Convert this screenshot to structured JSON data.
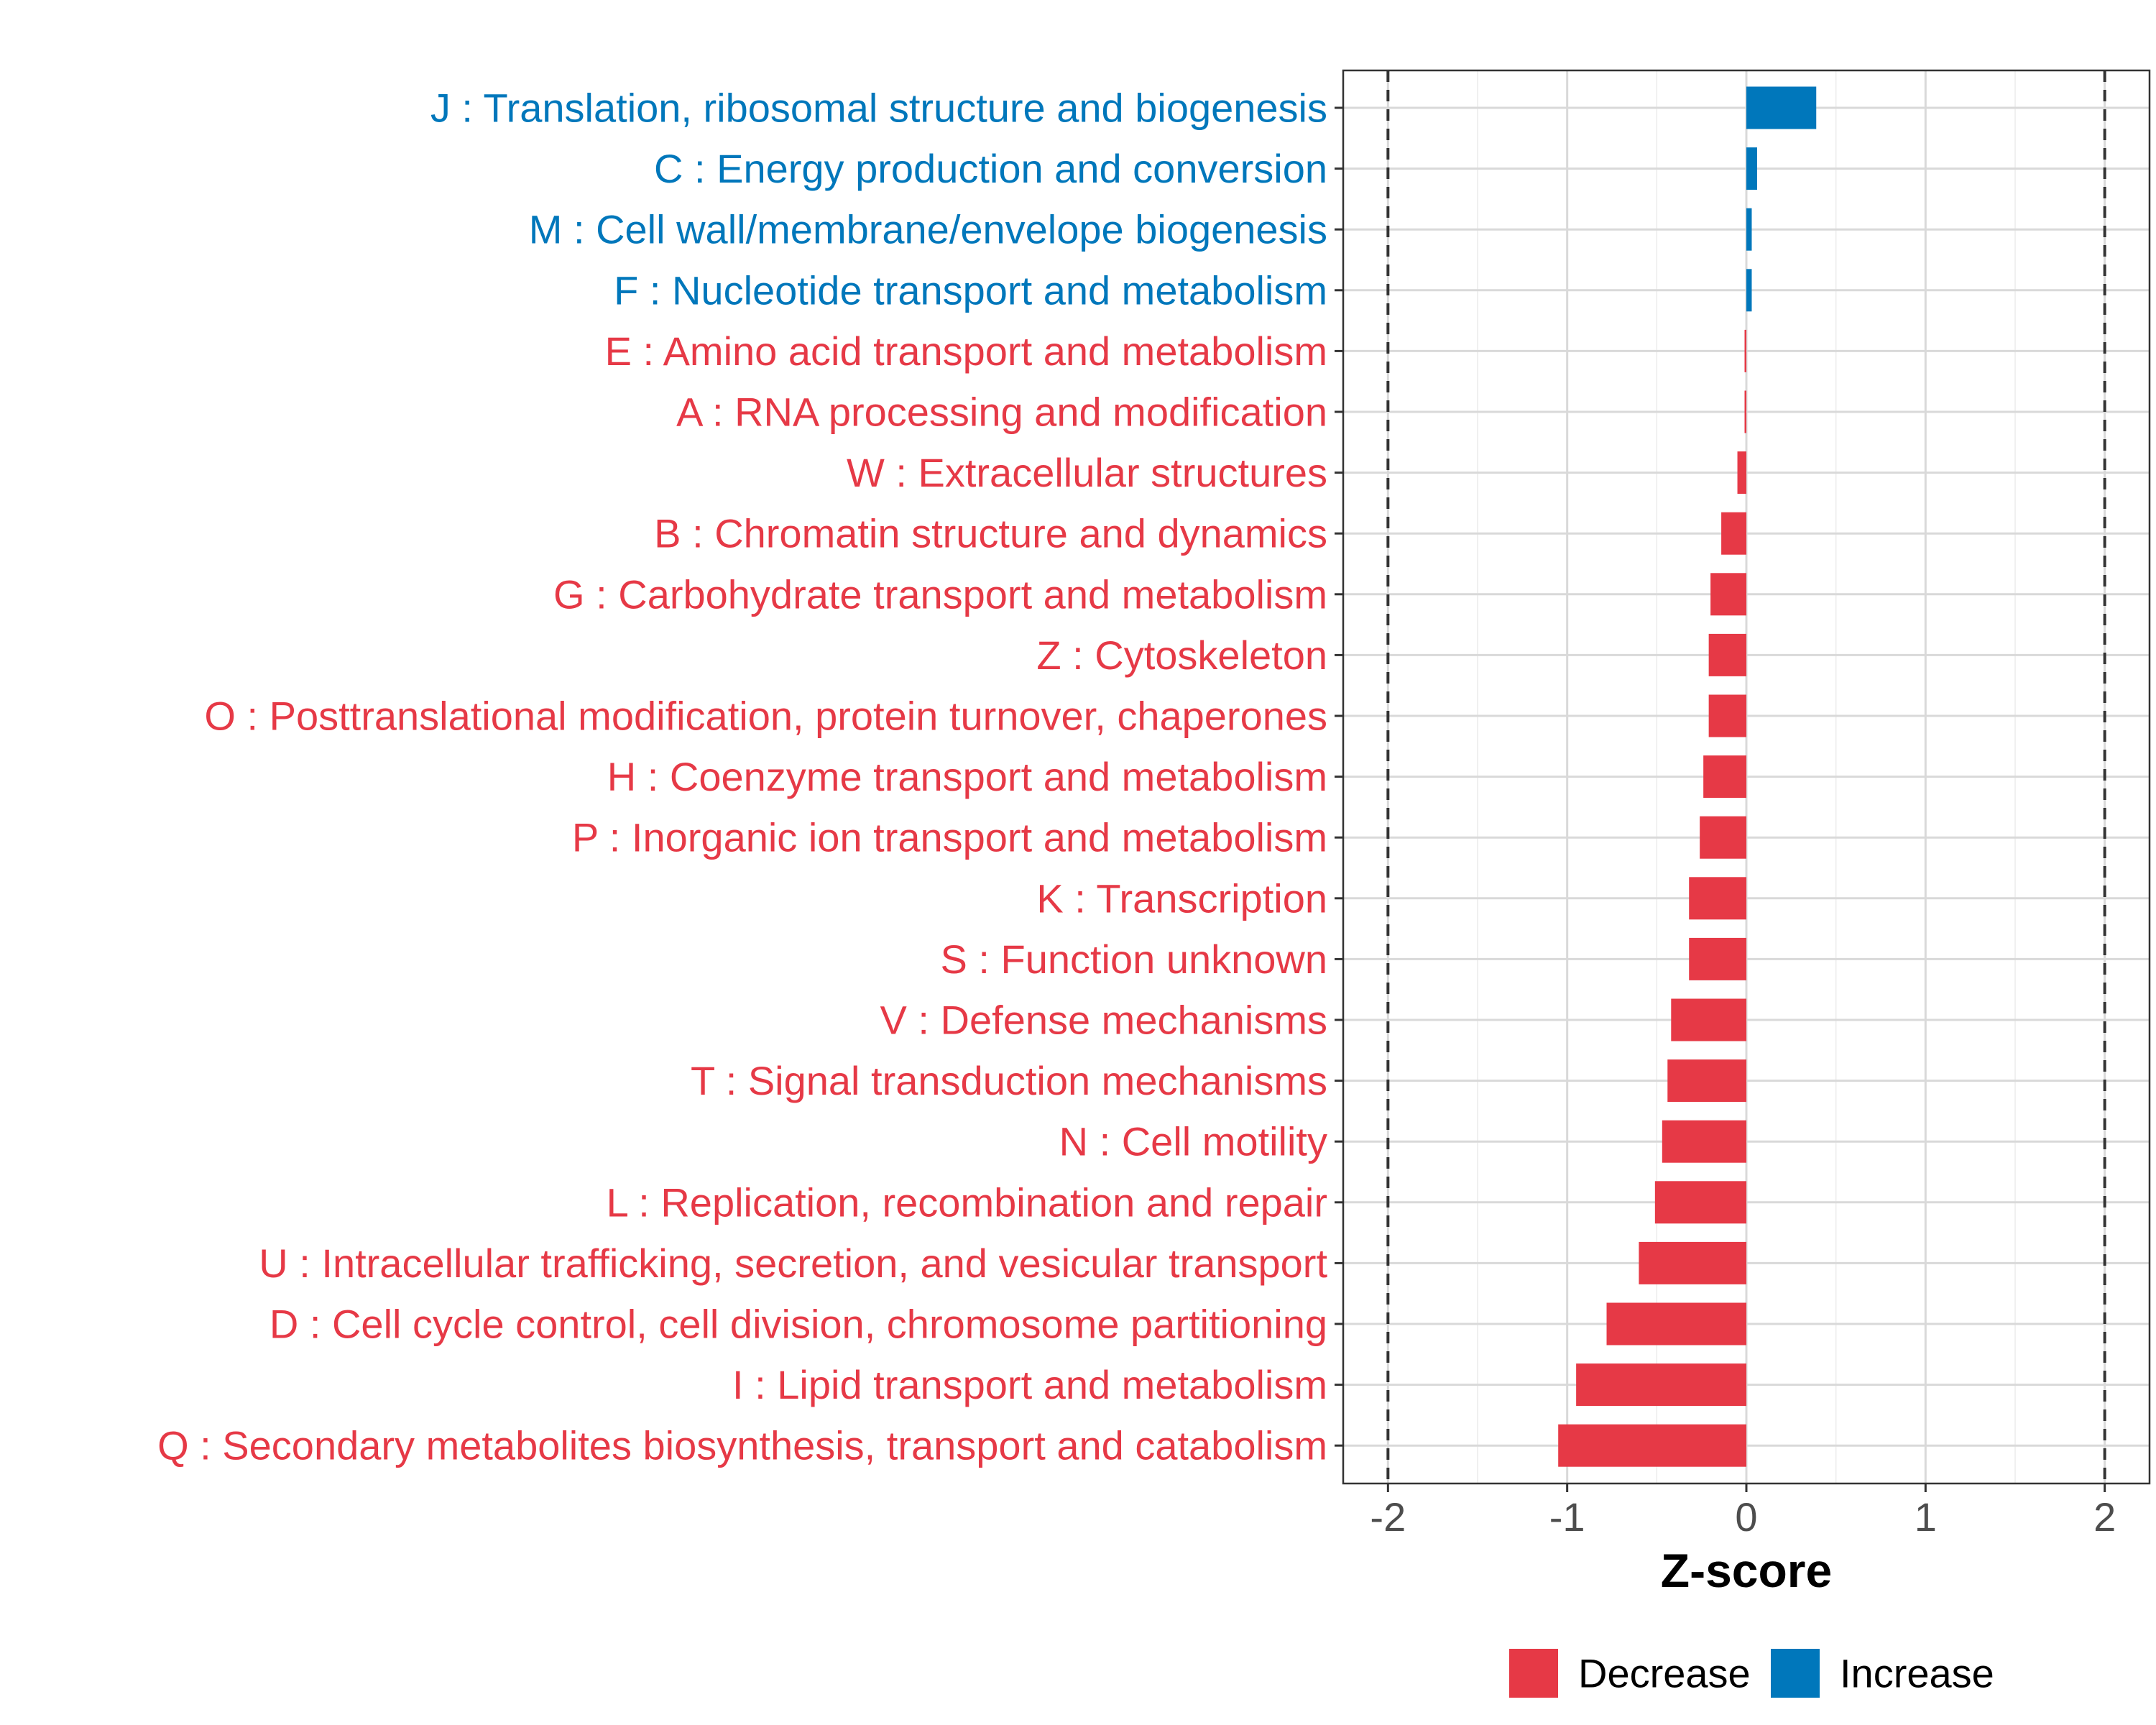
{
  "chart_data": {
    "type": "bar",
    "orientation": "horizontal",
    "title": "",
    "xlabel": "Z-score",
    "ylabel": "",
    "xlim": [
      -2.25,
      2.25
    ],
    "x_ticks": [
      -2,
      -1,
      0,
      1,
      2
    ],
    "x_tick_labels": [
      "-2",
      "-1",
      "0",
      "1",
      "2"
    ],
    "threshold_lines": [
      -2,
      2
    ],
    "grid": true,
    "colors": {
      "Decrease": "#E63946",
      "Increase": "#0077BB"
    },
    "categories": [
      "J : Translation, ribosomal structure and biogenesis",
      "C : Energy production and conversion",
      "M : Cell wall/membrane/envelope biogenesis",
      "F : Nucleotide transport and metabolism",
      "E : Amino acid transport and metabolism",
      "A : RNA processing and modification",
      "W : Extracellular structures",
      "B : Chromatin structure and dynamics",
      "G : Carbohydrate transport and metabolism",
      "Z : Cytoskeleton",
      "O : Posttranslational modification, protein turnover, chaperones",
      "H : Coenzyme transport and metabolism",
      "P : Inorganic ion transport and metabolism",
      "K : Transcription",
      "S : Function unknown",
      "V : Defense mechanisms",
      "T : Signal transduction mechanisms",
      "N : Cell motility",
      "L : Replication, recombination and repair",
      "U : Intracellular trafficking, secretion, and vesicular transport",
      "D : Cell cycle control, cell division, chromosome partitioning",
      "I : Lipid transport and metabolism",
      "Q : Secondary metabolites biosynthesis, transport and catabolism"
    ],
    "values": [
      0.39,
      0.06,
      0.03,
      0.03,
      -0.01,
      -0.01,
      -0.05,
      -0.14,
      -0.2,
      -0.21,
      -0.21,
      -0.24,
      -0.26,
      -0.32,
      -0.32,
      -0.42,
      -0.44,
      -0.47,
      -0.51,
      -0.6,
      -0.78,
      -0.95,
      -1.05
    ],
    "groups": [
      "Increase",
      "Increase",
      "Increase",
      "Increase",
      "Decrease",
      "Decrease",
      "Decrease",
      "Decrease",
      "Decrease",
      "Decrease",
      "Decrease",
      "Decrease",
      "Decrease",
      "Decrease",
      "Decrease",
      "Decrease",
      "Decrease",
      "Decrease",
      "Decrease",
      "Decrease",
      "Decrease",
      "Decrease",
      "Decrease"
    ],
    "legend": {
      "position": "bottom",
      "entries": [
        {
          "label": "Decrease",
          "color": "#E63946"
        },
        {
          "label": "Increase",
          "color": "#0077BB"
        }
      ]
    }
  }
}
